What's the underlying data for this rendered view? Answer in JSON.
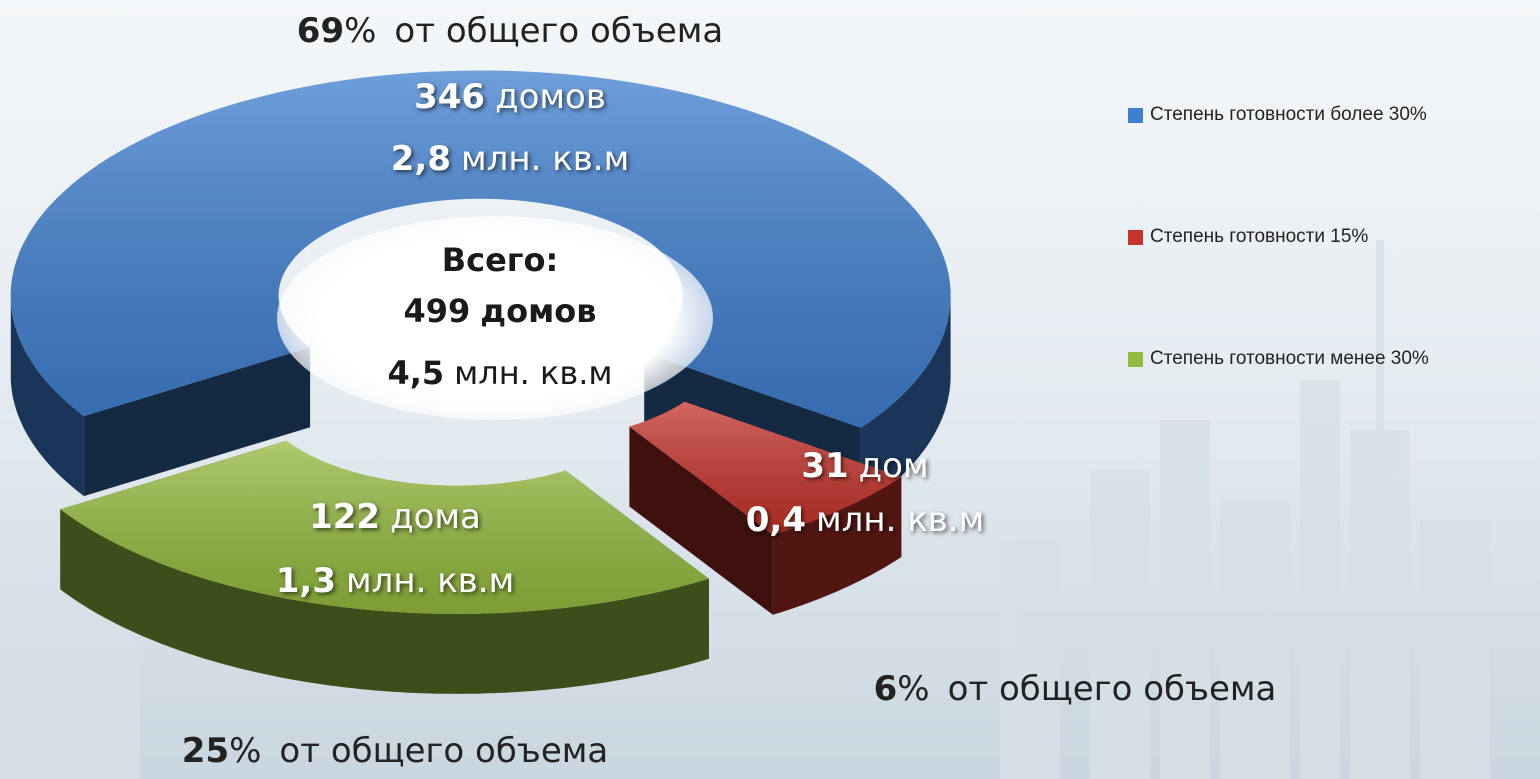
{
  "chart_data": {
    "type": "pie",
    "categories": [
      "Степень готовности более 30%",
      "Степень готовности 15%",
      "Степень готовности менее 30%"
    ],
    "values": [
      69,
      6,
      25
    ],
    "colors": [
      "#3f7fcf",
      "#c4342c",
      "#93ba3e"
    ],
    "share_unit": "%",
    "share_text": "от общего объема",
    "houses": {
      "values": [
        346,
        31,
        122
      ],
      "units": [
        "домов",
        "дом",
        "дома"
      ]
    },
    "area": {
      "values": [
        2.8,
        0.4,
        1.3
      ],
      "value_labels": [
        "2,8",
        "0,4",
        "1,3"
      ],
      "unit": "млн. кв.м"
    },
    "total": {
      "title": "Всего:",
      "houses": 499,
      "houses_unit": "домов",
      "area": 4.5,
      "area_label": "4,5",
      "area_unit": "млн. кв.м"
    },
    "legend": "right"
  }
}
